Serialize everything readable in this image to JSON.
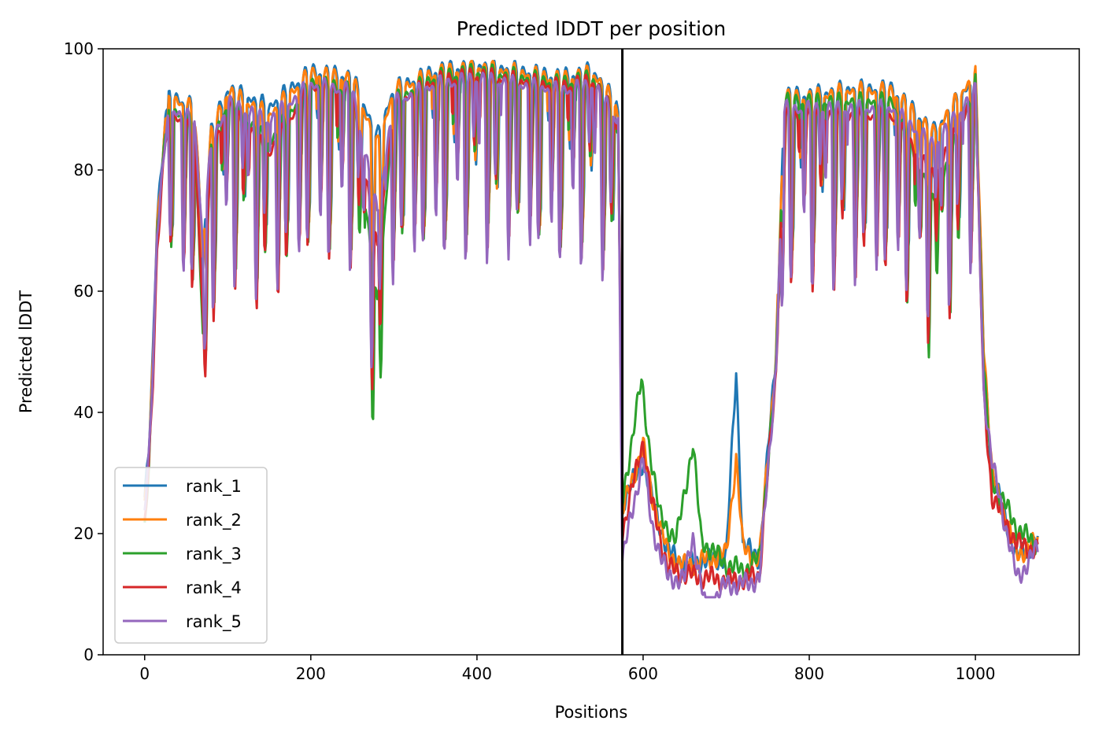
{
  "chart_data": {
    "type": "line",
    "title": "Predicted lDDT per position",
    "xlabel": "Positions",
    "ylabel": "Predicted lDDT",
    "xlim": [
      -50,
      1125
    ],
    "ylim": [
      0,
      100
    ],
    "xticks": [
      0,
      200,
      400,
      600,
      800,
      1000
    ],
    "yticks": [
      0,
      20,
      40,
      60,
      80,
      100
    ],
    "grid": false,
    "legend_position": "lower-left",
    "chain_break": 575,
    "series": [
      {
        "name": "rank_1",
        "color": "#1f77b4",
        "shape": 0,
        "offset": 0.0,
        "points": [
          [
            0,
            26
          ],
          [
            5,
            34
          ],
          [
            10,
            50
          ],
          [
            15,
            72
          ],
          [
            20,
            80
          ],
          [
            25,
            88
          ],
          [
            30,
            92
          ],
          [
            60,
            90
          ],
          [
            70,
            66
          ],
          [
            80,
            86
          ],
          [
            100,
            93
          ],
          [
            150,
            90
          ],
          [
            200,
            96
          ],
          [
            250,
            95
          ],
          [
            280,
            85
          ],
          [
            300,
            93
          ],
          [
            350,
            96
          ],
          [
            400,
            97
          ],
          [
            450,
            96
          ],
          [
            500,
            95
          ],
          [
            540,
            96
          ],
          [
            570,
            90
          ],
          [
            575,
            25
          ],
          [
            600,
            32
          ],
          [
            610,
            26
          ],
          [
            630,
            17
          ],
          [
            650,
            15
          ],
          [
            700,
            16
          ],
          [
            712,
            47
          ],
          [
            720,
            18
          ],
          [
            740,
            16
          ],
          [
            760,
            50
          ],
          [
            770,
            92
          ],
          [
            800,
            92
          ],
          [
            850,
            93
          ],
          [
            900,
            93
          ],
          [
            950,
            86
          ],
          [
            1000,
            95
          ],
          [
            1010,
            50
          ],
          [
            1020,
            30
          ],
          [
            1050,
            16
          ],
          [
            1075,
            19
          ]
        ]
      },
      {
        "name": "rank_2",
        "color": "#ff7f0e",
        "shape": 1,
        "offset": 0.4,
        "points": [
          [
            0,
            25
          ],
          [
            5,
            33
          ],
          [
            10,
            49
          ],
          [
            15,
            71
          ],
          [
            20,
            79
          ],
          [
            25,
            88
          ],
          [
            30,
            92
          ],
          [
            60,
            90
          ],
          [
            70,
            67
          ],
          [
            80,
            86
          ],
          [
            100,
            93
          ],
          [
            150,
            89
          ],
          [
            200,
            96
          ],
          [
            250,
            95
          ],
          [
            280,
            84
          ],
          [
            300,
            93
          ],
          [
            350,
            96
          ],
          [
            400,
            97
          ],
          [
            450,
            96
          ],
          [
            500,
            95
          ],
          [
            540,
            96
          ],
          [
            570,
            90
          ],
          [
            575,
            24
          ],
          [
            600,
            35
          ],
          [
            610,
            27
          ],
          [
            630,
            17
          ],
          [
            650,
            15
          ],
          [
            700,
            17
          ],
          [
            712,
            33
          ],
          [
            720,
            18
          ],
          [
            740,
            16
          ],
          [
            760,
            50
          ],
          [
            770,
            92
          ],
          [
            800,
            92
          ],
          [
            850,
            93
          ],
          [
            900,
            93
          ],
          [
            950,
            86
          ],
          [
            1000,
            96
          ],
          [
            1010,
            52
          ],
          [
            1020,
            30
          ],
          [
            1050,
            17
          ],
          [
            1075,
            19
          ]
        ]
      },
      {
        "name": "rank_3",
        "color": "#2ca02c",
        "shape": 2,
        "offset": 1.1,
        "points": [
          [
            0,
            22
          ],
          [
            5,
            32
          ],
          [
            10,
            48
          ],
          [
            15,
            70
          ],
          [
            20,
            79
          ],
          [
            25,
            87
          ],
          [
            30,
            91
          ],
          [
            60,
            88
          ],
          [
            70,
            54
          ],
          [
            80,
            84
          ],
          [
            100,
            92
          ],
          [
            150,
            85
          ],
          [
            200,
            95
          ],
          [
            250,
            94
          ],
          [
            280,
            58
          ],
          [
            300,
            92
          ],
          [
            350,
            96
          ],
          [
            400,
            97
          ],
          [
            450,
            96
          ],
          [
            500,
            95
          ],
          [
            540,
            96
          ],
          [
            570,
            88
          ],
          [
            575,
            26
          ],
          [
            590,
            40
          ],
          [
            598,
            46
          ],
          [
            605,
            38
          ],
          [
            620,
            24
          ],
          [
            640,
            20
          ],
          [
            660,
            36
          ],
          [
            670,
            20
          ],
          [
            700,
            16
          ],
          [
            720,
            15
          ],
          [
            740,
            17
          ],
          [
            760,
            48
          ],
          [
            770,
            92
          ],
          [
            800,
            92
          ],
          [
            850,
            92
          ],
          [
            900,
            92
          ],
          [
            950,
            75
          ],
          [
            1000,
            95
          ],
          [
            1010,
            48
          ],
          [
            1020,
            30
          ],
          [
            1050,
            22
          ],
          [
            1075,
            19
          ]
        ]
      },
      {
        "name": "rank_4",
        "color": "#d62728",
        "shape": 3,
        "offset": 1.7,
        "points": [
          [
            0,
            24
          ],
          [
            5,
            33
          ],
          [
            10,
            47
          ],
          [
            15,
            68
          ],
          [
            20,
            78
          ],
          [
            25,
            87
          ],
          [
            30,
            91
          ],
          [
            60,
            87
          ],
          [
            70,
            58
          ],
          [
            80,
            83
          ],
          [
            100,
            92
          ],
          [
            150,
            84
          ],
          [
            200,
            95
          ],
          [
            250,
            94
          ],
          [
            280,
            68
          ],
          [
            300,
            92
          ],
          [
            350,
            96
          ],
          [
            400,
            97
          ],
          [
            450,
            96
          ],
          [
            500,
            95
          ],
          [
            540,
            96
          ],
          [
            570,
            89
          ],
          [
            575,
            22
          ],
          [
            600,
            37
          ],
          [
            610,
            27
          ],
          [
            630,
            16
          ],
          [
            650,
            15
          ],
          [
            700,
            14
          ],
          [
            720,
            14
          ],
          [
            740,
            15
          ],
          [
            760,
            48
          ],
          [
            770,
            90
          ],
          [
            800,
            90
          ],
          [
            850,
            90
          ],
          [
            900,
            90
          ],
          [
            950,
            80
          ],
          [
            1000,
            94
          ],
          [
            1010,
            44
          ],
          [
            1020,
            28
          ],
          [
            1050,
            20
          ],
          [
            1075,
            19
          ]
        ]
      },
      {
        "name": "rank_5",
        "color": "#9467bd",
        "shape": 4,
        "offset": 2.4,
        "points": [
          [
            0,
            27
          ],
          [
            5,
            35
          ],
          [
            10,
            50
          ],
          [
            15,
            72
          ],
          [
            20,
            80
          ],
          [
            25,
            88
          ],
          [
            30,
            92
          ],
          [
            60,
            90
          ],
          [
            70,
            70
          ],
          [
            80,
            86
          ],
          [
            100,
            93
          ],
          [
            150,
            90
          ],
          [
            200,
            96
          ],
          [
            250,
            95
          ],
          [
            280,
            75
          ],
          [
            300,
            93
          ],
          [
            350,
            96
          ],
          [
            400,
            97
          ],
          [
            450,
            96
          ],
          [
            500,
            95
          ],
          [
            540,
            96
          ],
          [
            570,
            90
          ],
          [
            575,
            18
          ],
          [
            600,
            35
          ],
          [
            610,
            24
          ],
          [
            630,
            15
          ],
          [
            650,
            15
          ],
          [
            660,
            22
          ],
          [
            675,
            10
          ],
          [
            700,
            14
          ],
          [
            720,
            14
          ],
          [
            740,
            15
          ],
          [
            760,
            50
          ],
          [
            770,
            92
          ],
          [
            800,
            92
          ],
          [
            850,
            92
          ],
          [
            900,
            92
          ],
          [
            950,
            86
          ],
          [
            1000,
            95
          ],
          [
            1010,
            46
          ],
          [
            1020,
            34
          ],
          [
            1050,
            15
          ],
          [
            1075,
            20
          ]
        ]
      }
    ]
  }
}
